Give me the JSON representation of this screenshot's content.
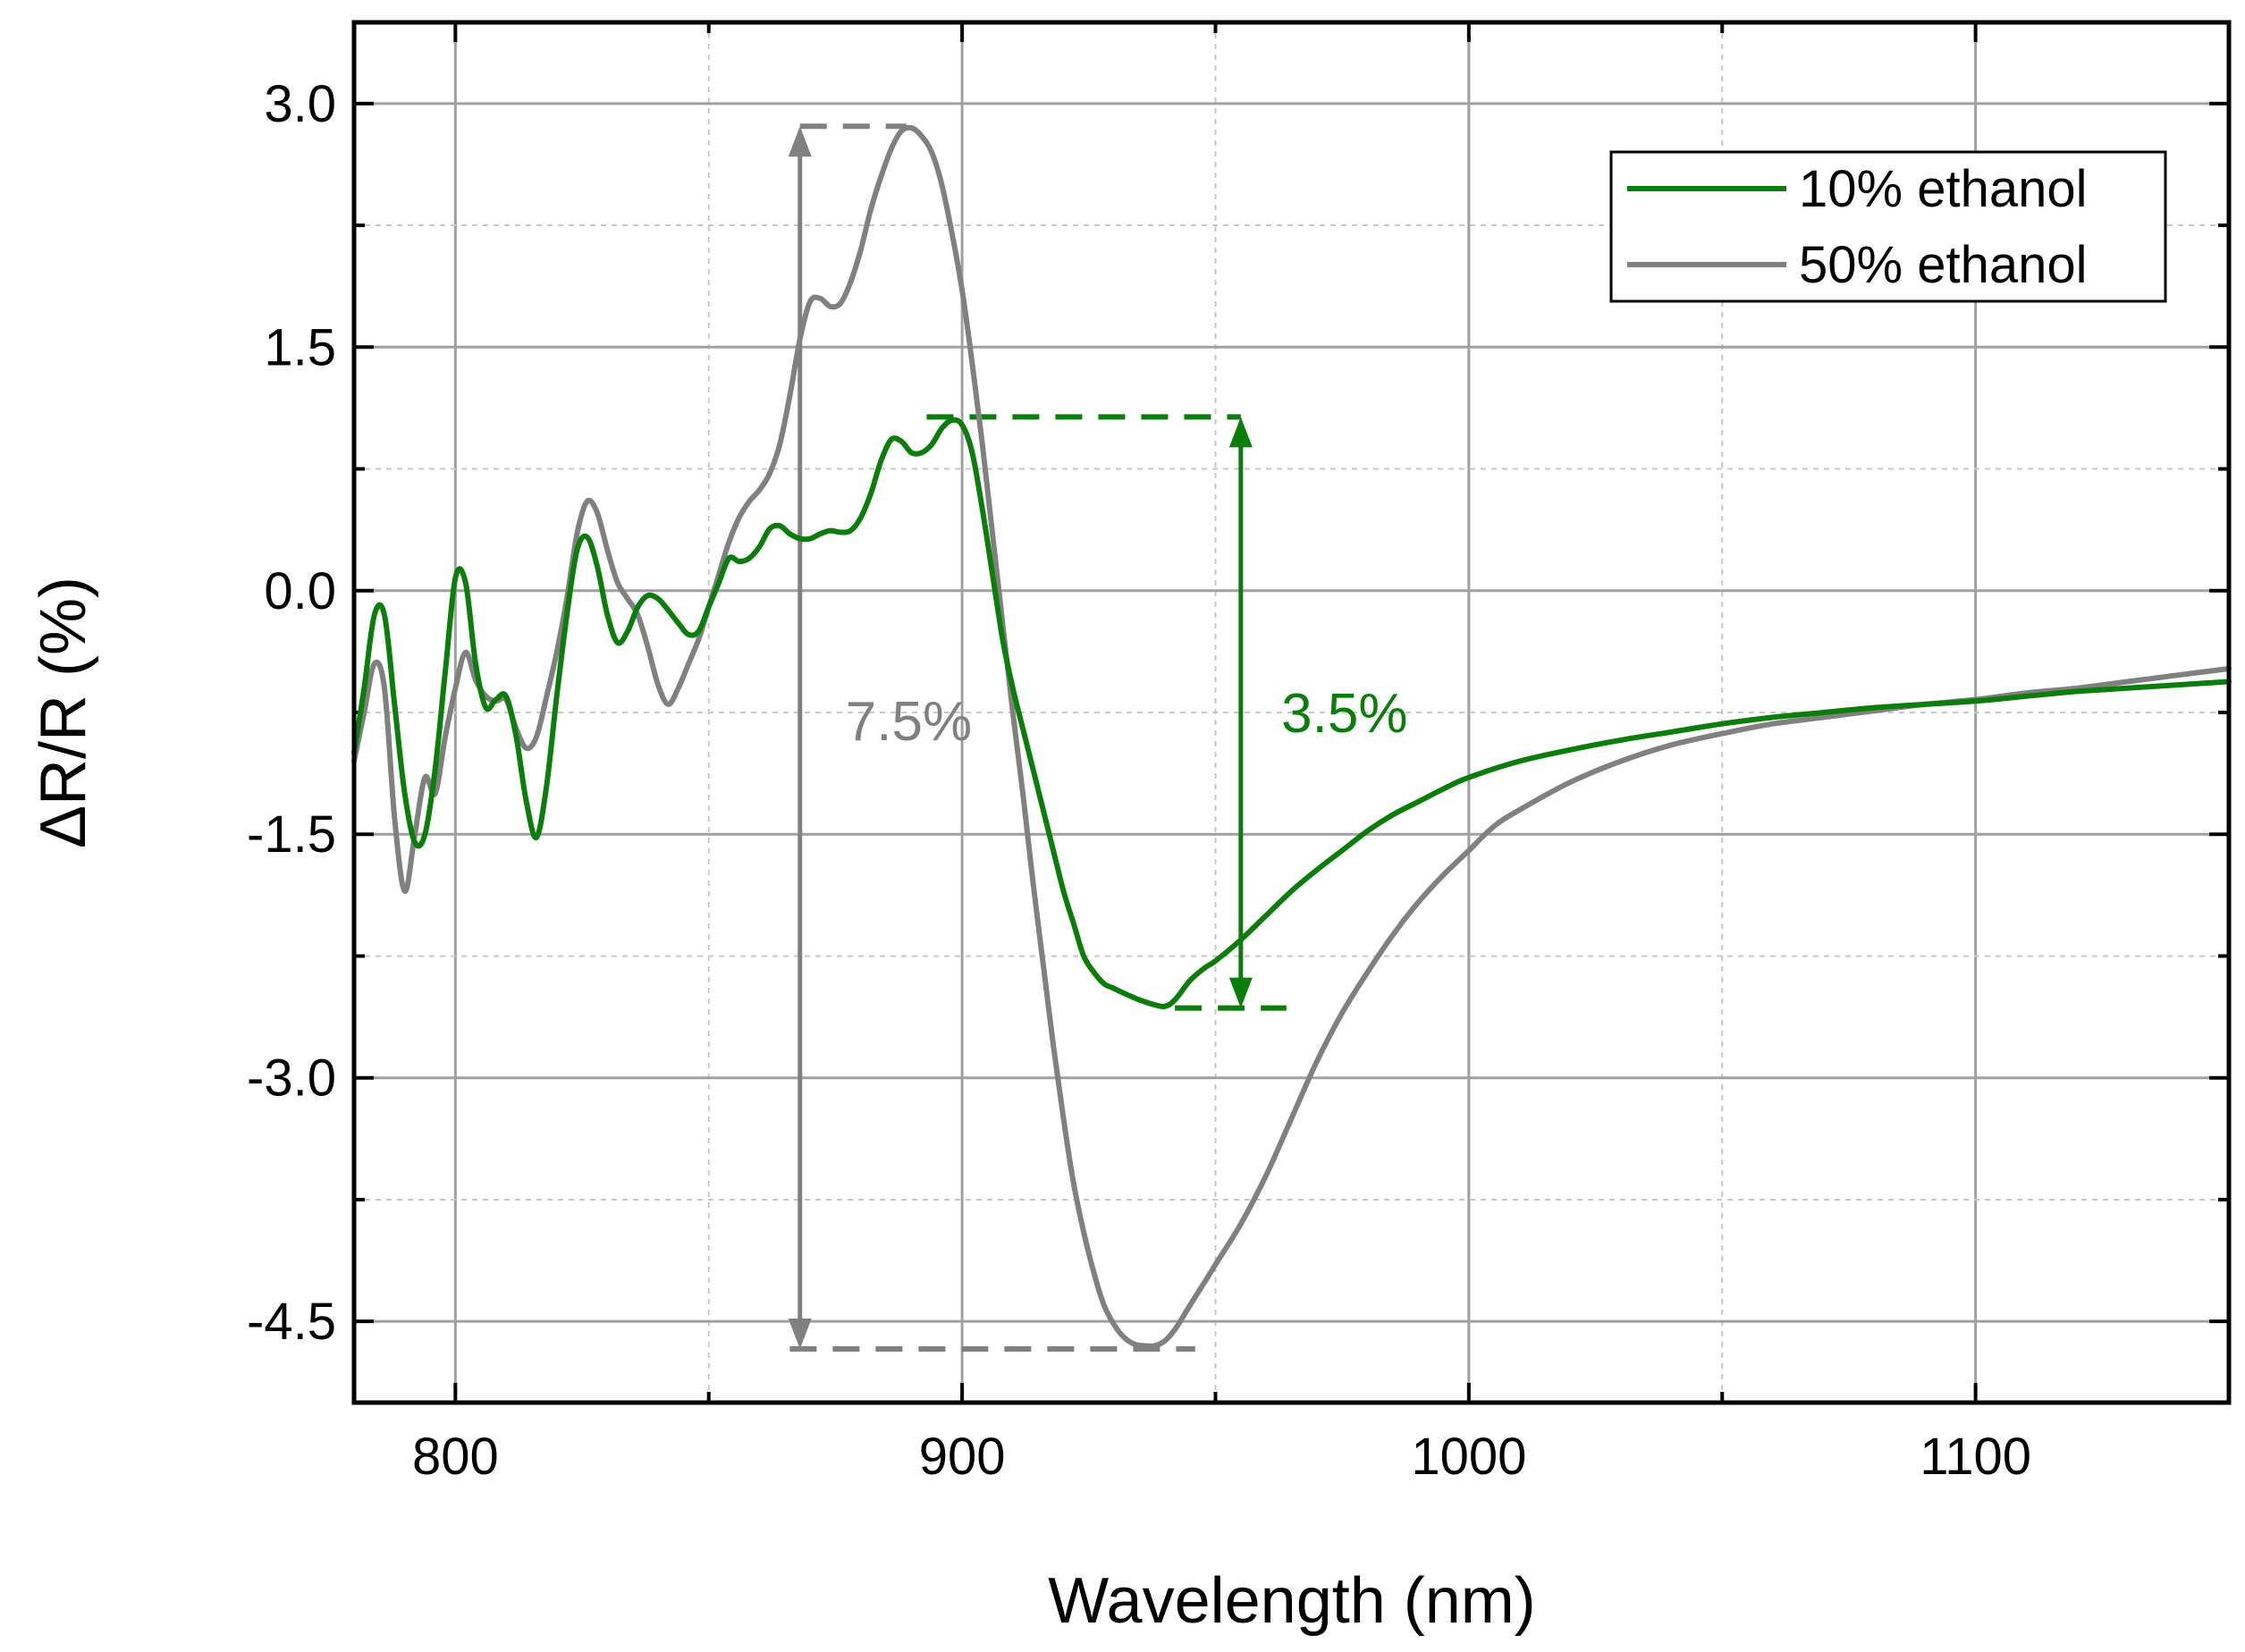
{
  "chart_data": {
    "type": "line",
    "xlabel": "Wavelength (nm)",
    "ylabel": "ΔR/R (%)",
    "xlim": [
      780,
      1150
    ],
    "ylim": [
      -5.0,
      3.5
    ],
    "x_ticks": [
      800,
      900,
      1000,
      1100
    ],
    "x_tick_labels": [
      "800",
      "900",
      "1000",
      "1100"
    ],
    "y_ticks": [
      3.0,
      1.5,
      0.0,
      -1.5,
      -3.0,
      -4.5
    ],
    "y_tick_labels": [
      "3.0",
      "1.5",
      "0.0",
      "-1.5",
      "-3.0",
      "-4.5"
    ],
    "x_minor_ticks": [
      850,
      950,
      1050
    ],
    "y_minor_ticks": [
      2.25,
      0.75,
      -0.75,
      -2.25,
      -3.75
    ],
    "grid": true,
    "legend_position": "top-right",
    "series": [
      {
        "name": "10% ethanol",
        "color": "#0a7d0a",
        "x": [
          780,
          782,
          784,
          786,
          788,
          790,
          792,
          794,
          796,
          798,
          800,
          802,
          804,
          806,
          808,
          810,
          812,
          814,
          816,
          818,
          820,
          822,
          824,
          826,
          828,
          830,
          832,
          834,
          836,
          838,
          840,
          842,
          844,
          846,
          848,
          850,
          852,
          854,
          856,
          858,
          860,
          862,
          864,
          866,
          868,
          870,
          872,
          874,
          876,
          878,
          880,
          882,
          884,
          886,
          888,
          890,
          892,
          894,
          896,
          898,
          900,
          902,
          904,
          906,
          908,
          910,
          912,
          914,
          916,
          918,
          920,
          922,
          924,
          926,
          928,
          930,
          932,
          935,
          938,
          940,
          942,
          945,
          948,
          950,
          955,
          960,
          965,
          970,
          975,
          980,
          985,
          990,
          995,
          1000,
          1010,
          1020,
          1030,
          1040,
          1050,
          1060,
          1070,
          1080,
          1090,
          1100,
          1110,
          1120,
          1130,
          1140,
          1150
        ],
        "y": [
          -1.0,
          -0.6,
          -0.15,
          -0.15,
          -0.7,
          -1.25,
          -1.55,
          -1.5,
          -1.1,
          -0.5,
          0.08,
          0.05,
          -0.45,
          -0.72,
          -0.67,
          -0.65,
          -0.9,
          -1.3,
          -1.52,
          -1.2,
          -0.65,
          -0.15,
          0.25,
          0.33,
          0.15,
          -0.15,
          -0.32,
          -0.25,
          -0.1,
          -0.03,
          -0.05,
          -0.12,
          -0.2,
          -0.27,
          -0.25,
          -0.1,
          0.05,
          0.2,
          0.18,
          0.2,
          0.27,
          0.38,
          0.4,
          0.35,
          0.32,
          0.32,
          0.35,
          0.37,
          0.36,
          0.37,
          0.45,
          0.6,
          0.8,
          0.93,
          0.92,
          0.85,
          0.85,
          0.9,
          1.0,
          1.05,
          1.02,
          0.85,
          0.5,
          0.1,
          -0.3,
          -0.6,
          -0.85,
          -1.1,
          -1.35,
          -1.6,
          -1.85,
          -2.05,
          -2.25,
          -2.35,
          -2.42,
          -2.45,
          -2.48,
          -2.52,
          -2.55,
          -2.56,
          -2.52,
          -2.4,
          -2.32,
          -2.28,
          -2.15,
          -2.0,
          -1.85,
          -1.72,
          -1.6,
          -1.48,
          -1.38,
          -1.3,
          -1.22,
          -1.15,
          -1.05,
          -0.98,
          -0.92,
          -0.87,
          -0.82,
          -0.78,
          -0.75,
          -0.72,
          -0.7,
          -0.68,
          -0.65,
          -0.62,
          -0.6,
          -0.58,
          -0.56
        ]
      },
      {
        "name": "50% ethanol",
        "color": "#808080",
        "x": [
          780,
          782,
          784,
          786,
          788,
          790,
          792,
          794,
          796,
          798,
          800,
          802,
          804,
          806,
          808,
          810,
          812,
          814,
          816,
          818,
          820,
          822,
          824,
          826,
          828,
          830,
          832,
          834,
          836,
          838,
          840,
          842,
          844,
          846,
          848,
          850,
          852,
          854,
          856,
          858,
          860,
          862,
          864,
          866,
          868,
          870,
          872,
          874,
          876,
          878,
          880,
          882,
          884,
          886,
          888,
          890,
          892,
          894,
          896,
          898,
          900,
          902,
          904,
          906,
          908,
          910,
          912,
          914,
          916,
          918,
          920,
          922,
          924,
          926,
          928,
          930,
          932,
          934,
          936,
          938,
          940,
          942,
          945,
          948,
          950,
          955,
          960,
          965,
          970,
          975,
          980,
          985,
          990,
          995,
          1000,
          1005,
          1010,
          1020,
          1030,
          1040,
          1050,
          1060,
          1070,
          1080,
          1090,
          1100,
          1110,
          1120,
          1130,
          1140,
          1150
        ],
        "y": [
          -1.05,
          -0.75,
          -0.45,
          -0.6,
          -1.4,
          -1.85,
          -1.5,
          -1.15,
          -1.25,
          -0.9,
          -0.6,
          -0.38,
          -0.55,
          -0.65,
          -0.68,
          -0.67,
          -0.85,
          -0.97,
          -0.9,
          -0.65,
          -0.38,
          -0.05,
          0.35,
          0.55,
          0.48,
          0.25,
          0.05,
          -0.05,
          -0.15,
          -0.35,
          -0.58,
          -0.7,
          -0.6,
          -0.45,
          -0.3,
          -0.1,
          0.1,
          0.3,
          0.45,
          0.55,
          0.62,
          0.72,
          0.9,
          1.2,
          1.55,
          1.78,
          1.8,
          1.75,
          1.77,
          1.9,
          2.1,
          2.35,
          2.55,
          2.72,
          2.83,
          2.85,
          2.8,
          2.7,
          2.5,
          2.2,
          1.85,
          1.4,
          0.9,
          0.35,
          -0.2,
          -0.75,
          -1.25,
          -1.8,
          -2.3,
          -2.8,
          -3.25,
          -3.65,
          -3.95,
          -4.2,
          -4.4,
          -4.52,
          -4.6,
          -4.64,
          -4.65,
          -4.65,
          -4.62,
          -4.55,
          -4.4,
          -4.25,
          -4.15,
          -3.9,
          -3.6,
          -3.25,
          -2.9,
          -2.6,
          -2.35,
          -2.12,
          -1.92,
          -1.75,
          -1.6,
          -1.45,
          -1.35,
          -1.18,
          -1.05,
          -0.95,
          -0.88,
          -0.82,
          -0.78,
          -0.74,
          -0.7,
          -0.67,
          -0.63,
          -0.6,
          -0.56,
          -0.52,
          -0.48
        ]
      }
    ],
    "annotations": [
      {
        "label": "7.5%",
        "color": "#808080",
        "arrow_x": 868,
        "y_top": 2.86,
        "y_bottom": -4.67,
        "top_dash_x": [
          868,
          889
        ],
        "bottom_dash_x": [
          866,
          946
        ],
        "label_x": 877,
        "label_y": -0.8
      },
      {
        "label": "3.5%",
        "color": "#0a7d0a",
        "arrow_x": 955,
        "y_top": 1.07,
        "y_bottom": -2.57,
        "top_dash_x": [
          893,
          955
        ],
        "bottom_dash_x": [
          942,
          964
        ],
        "label_x": 963,
        "label_y": -0.75
      }
    ]
  }
}
